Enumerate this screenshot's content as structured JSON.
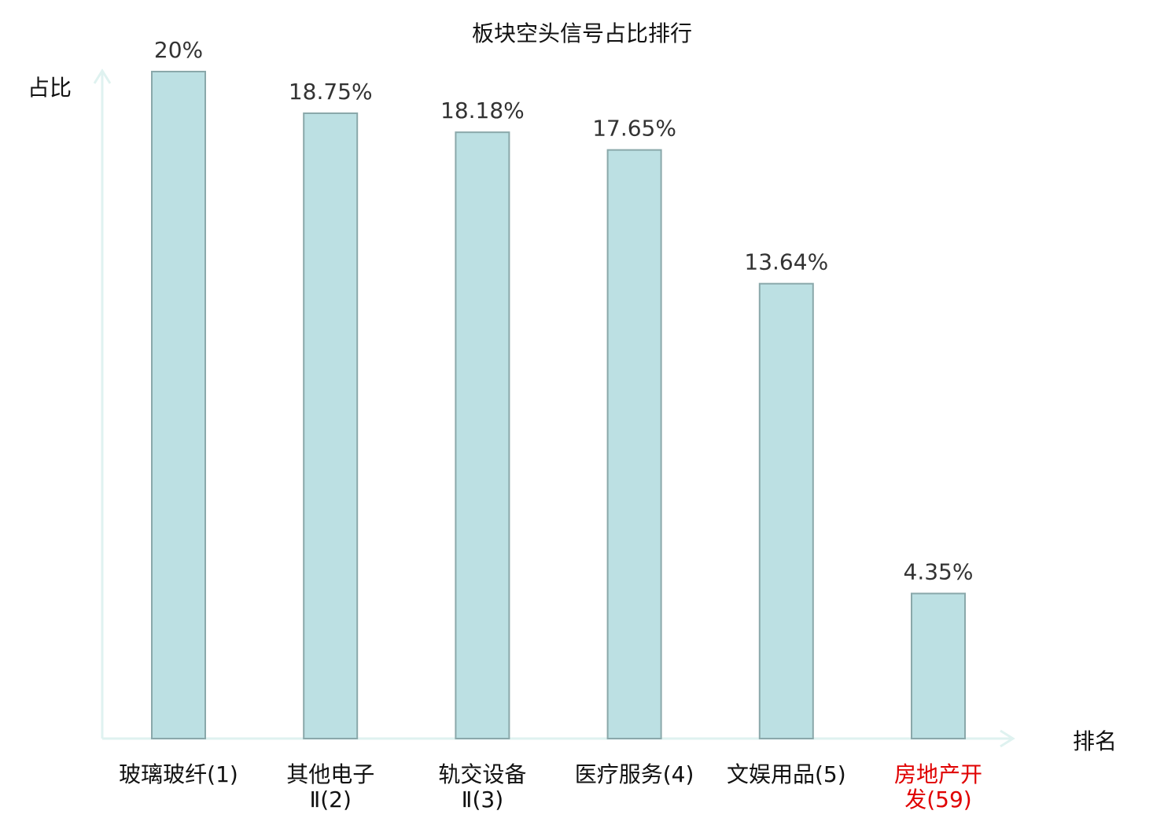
{
  "chart_data": {
    "type": "bar",
    "title": "板块空头信号占比排行",
    "xlabel": "排名",
    "ylabel": "占比",
    "categories": [
      {
        "lines": [
          "玻璃玻纤(1)"
        ],
        "highlight": false
      },
      {
        "lines": [
          "其他电子",
          "Ⅱ(2)"
        ],
        "highlight": false
      },
      {
        "lines": [
          "轨交设备",
          "Ⅱ(3)"
        ],
        "highlight": false
      },
      {
        "lines": [
          "医疗服务(4)"
        ],
        "highlight": false
      },
      {
        "lines": [
          "文娱用品(5)"
        ],
        "highlight": false
      },
      {
        "lines": [
          "房地产开",
          "发(59)"
        ],
        "highlight": true
      }
    ],
    "values": [
      20,
      18.75,
      18.18,
      17.65,
      13.64,
      4.35
    ],
    "data_labels": [
      "20%",
      "18.75%",
      "18.18%",
      "17.65%",
      "13.64%",
      "4.35%"
    ],
    "ylim": [
      0,
      20
    ],
    "grid": false,
    "colors": {
      "bar_fill": "#bce0e3",
      "bar_stroke": "#8aa8aa",
      "axis": "#dff2f0",
      "highlight_label": "#e00000",
      "text": "#333333"
    }
  }
}
